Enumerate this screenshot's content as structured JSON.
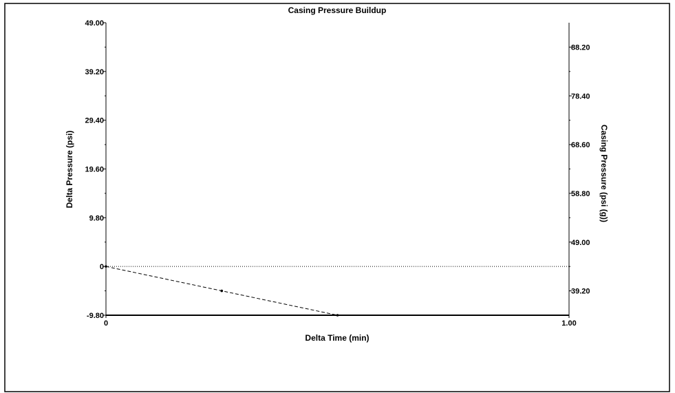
{
  "chart_data": {
    "type": "line",
    "title": "Casing Pressure Buildup",
    "xlabel": "Delta Time (min)",
    "ylabel": "Delta Pressure (psi)",
    "y2label": "Casing Pressure (psi (g))",
    "xlim": [
      0,
      1
    ],
    "ylim": [
      -9.8,
      49
    ],
    "y2lim": [
      34.3,
      93.1
    ],
    "x_ticks": [
      0,
      1
    ],
    "x_tick_labels": [
      "0",
      "1.00"
    ],
    "y_ticks": [
      -9.8,
      0,
      9.8,
      19.6,
      29.4,
      39.2,
      49
    ],
    "y_tick_labels": [
      "-9.80",
      "0",
      "9.80",
      "19.60",
      "29.40",
      "39.20",
      "49.00"
    ],
    "y2_ticks": [
      39.2,
      49,
      58.8,
      68.6,
      78.4,
      88.2
    ],
    "y2_tick_labels": [
      "39.20",
      "49.00",
      "58.80",
      "68.60",
      "78.40",
      "88.20"
    ],
    "series": [
      {
        "x": [
          0,
          0.25,
          0.5
        ],
        "y": [
          0,
          -4.9,
          -9.8
        ],
        "style": "dashed",
        "color": "#000000"
      }
    ],
    "reference_lines": [
      {
        "y": 0,
        "style": "dotted",
        "color": "#000000"
      }
    ],
    "grid": false,
    "legend": "none"
  }
}
